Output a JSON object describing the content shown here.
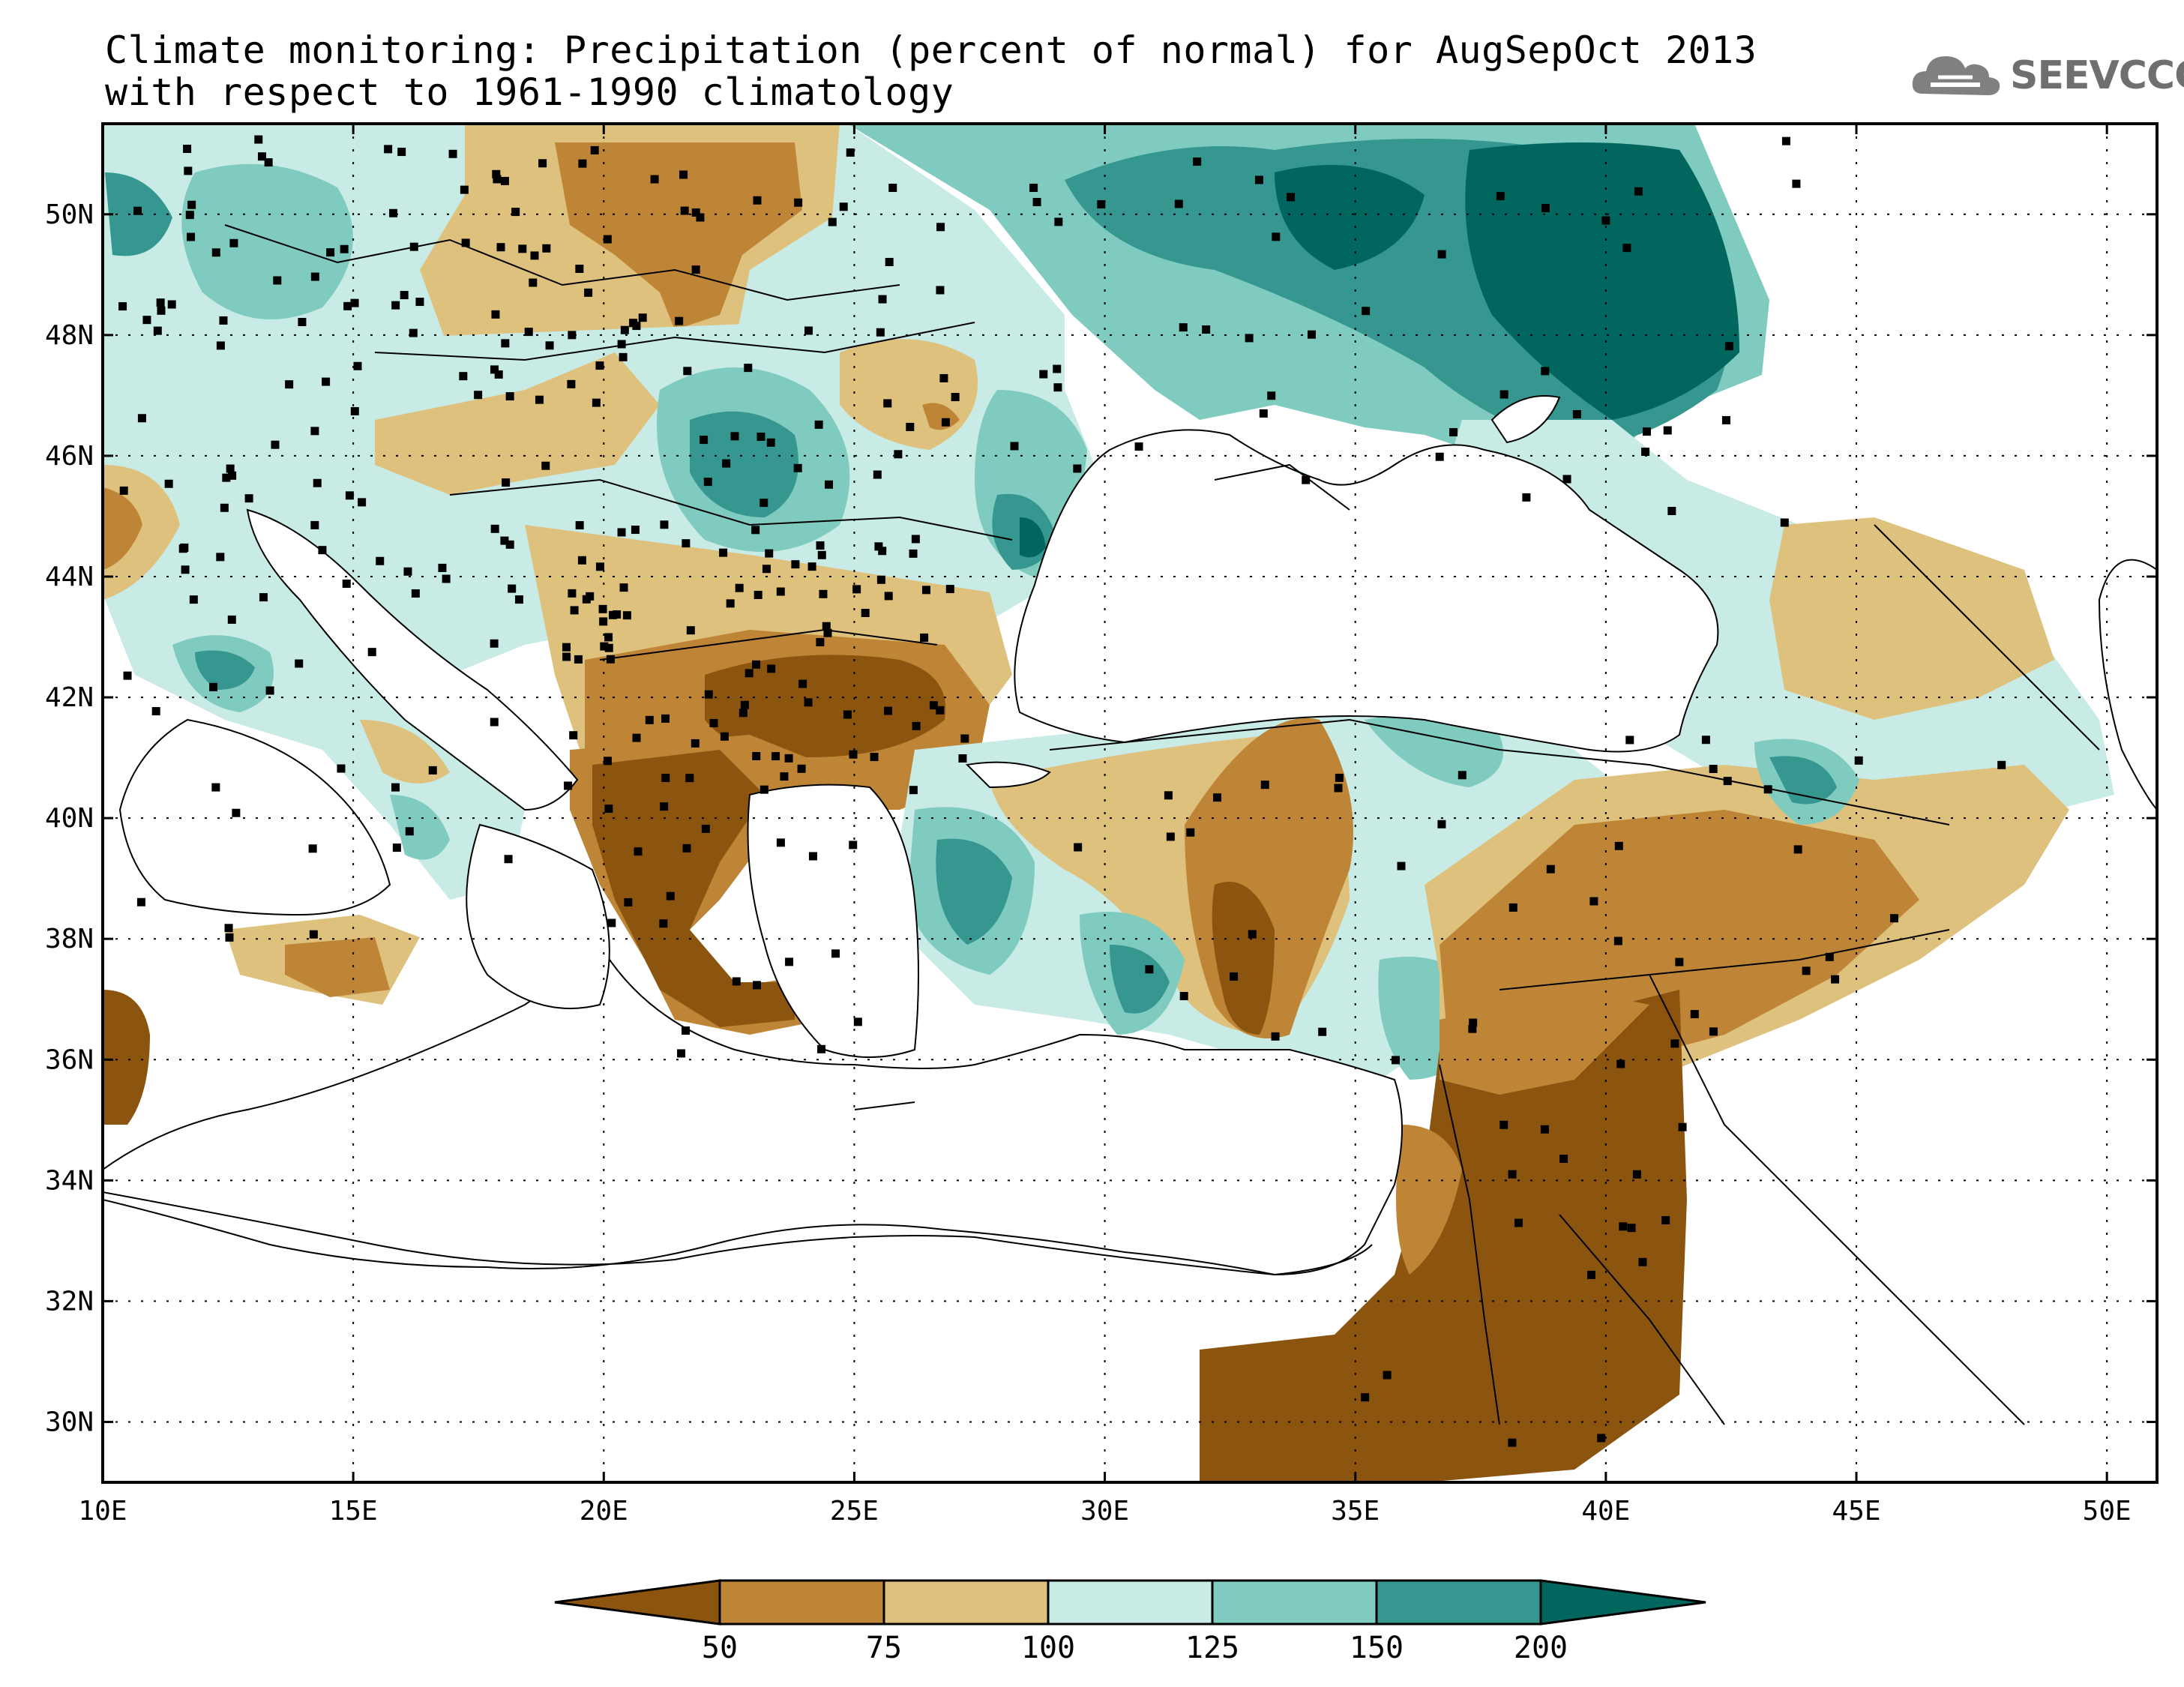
{
  "title": {
    "line1": "Climate monitoring: Precipitation (percent of normal) for AugSepOct 2013",
    "line2": "with respect to 1961-1990 climatology"
  },
  "logo": {
    "text": "SEEVCCC",
    "icon": "cloud-icon"
  },
  "map": {
    "lon_range": [
      10,
      51
    ],
    "lat_range": [
      29,
      51.5
    ],
    "lon_ticks": [
      "10E",
      "15E",
      "20E",
      "25E",
      "30E",
      "35E",
      "40E",
      "45E",
      "50E"
    ],
    "lat_ticks": [
      "50N",
      "48N",
      "46N",
      "44N",
      "42N",
      "40N",
      "38N",
      "36N",
      "34N",
      "32N",
      "30N"
    ],
    "grid": true
  },
  "colorbar": {
    "labels": [
      "50",
      "75",
      "100",
      "125",
      "150",
      "200"
    ],
    "colors": [
      "#8b5510",
      "#bf8536",
      "#dfc17e",
      "#c8ebe5",
      "#7fcbbf",
      "#35978f",
      "#01665e"
    ]
  }
}
